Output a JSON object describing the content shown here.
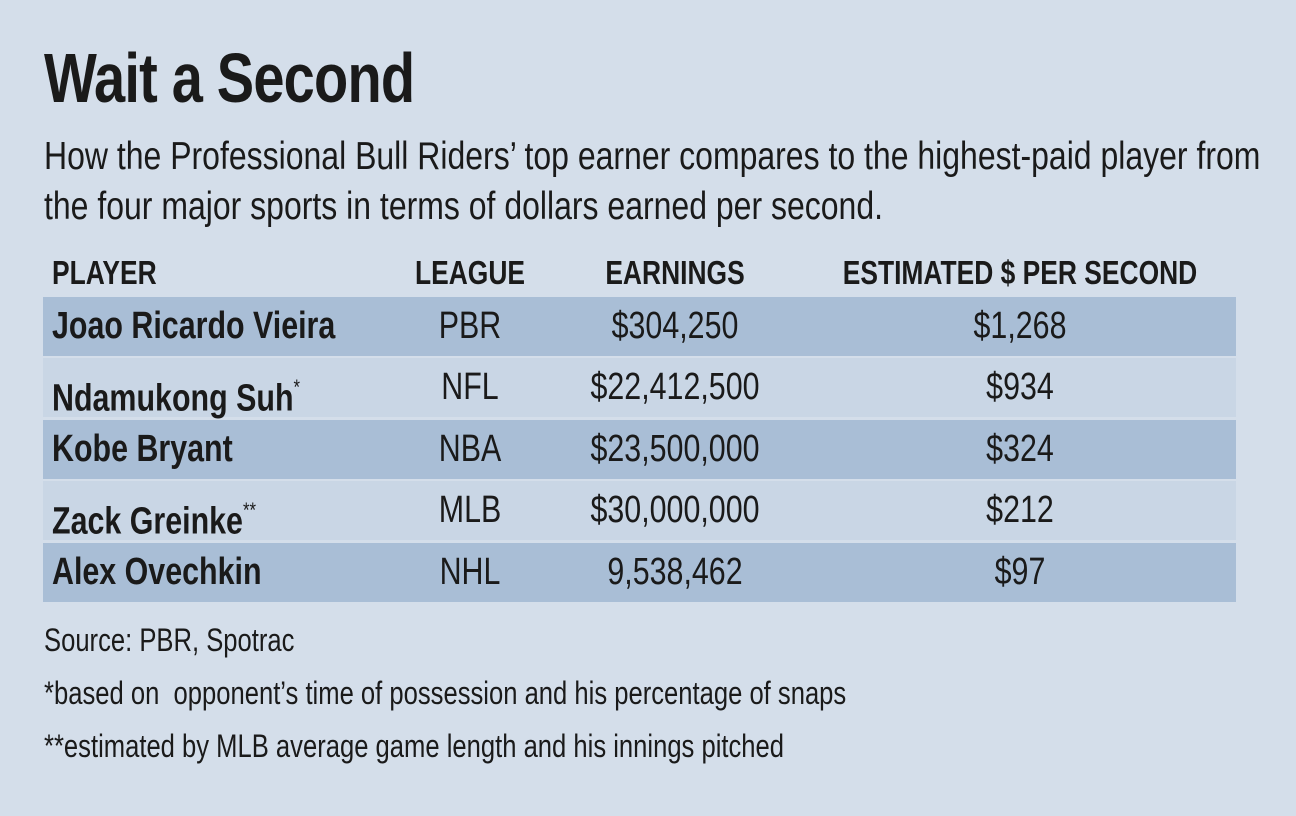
{
  "header": {
    "title": "Wait a Second",
    "subtitle": "How the Professional Bull Riders’ top earner compares to the highest-paid player from the four major sports in terms of dollars earned per second."
  },
  "table": {
    "columns": [
      "PLAYER",
      "LEAGUE",
      "EARNINGS",
      "ESTIMATED $ PER SECOND"
    ],
    "rows": [
      {
        "player": "Joao Ricardo Vieira",
        "league": "PBR",
        "earnings": "$304,250",
        "per_second": "$1,268"
      },
      {
        "player": "Ndamukong Suh",
        "mark": "*",
        "league": "NFL",
        "earnings": "$22,412,500",
        "per_second": "$934"
      },
      {
        "player": "Kobe Bryant",
        "league": "NBA",
        "earnings": "$23,500,000",
        "per_second": "$324"
      },
      {
        "player": "Zack Greinke",
        "mark": "**",
        "league": "MLB",
        "earnings": "$30,000,000",
        "per_second": "$212"
      },
      {
        "player": "Alex Ovechkin",
        "league": "NHL",
        "earnings": "9,538,462",
        "per_second": "$97"
      }
    ]
  },
  "footer": {
    "source": "Source: PBR, Spotrac",
    "notes": [
      "*based on  opponent’s time of possession and his percentage of snaps",
      "**estimated by MLB average game length and his innings pitched"
    ]
  }
}
